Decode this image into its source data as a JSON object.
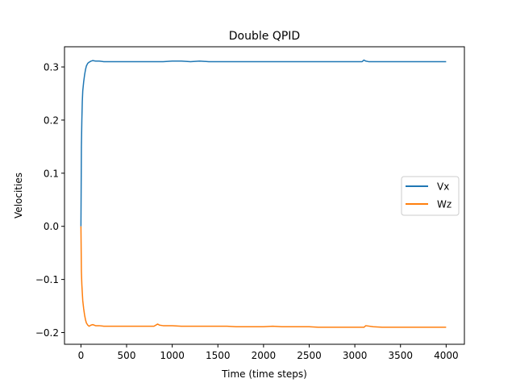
{
  "chart_data": {
    "type": "line",
    "title": "Double QPID",
    "xlabel": "Time (time steps)",
    "ylabel": "Velocities",
    "xlim": [
      -180,
      4200
    ],
    "ylim": [
      -0.222,
      0.338
    ],
    "xticks": [
      0,
      500,
      1000,
      1500,
      2000,
      2500,
      3000,
      3500,
      4000
    ],
    "yticks": [
      -0.2,
      -0.1,
      0.0,
      0.1,
      0.2,
      0.3
    ],
    "ytick_labels": [
      "−0.2",
      "−0.1",
      "0.0",
      "0.1",
      "0.2",
      "0.3"
    ],
    "grid": false,
    "legend": {
      "placement": "center-right"
    },
    "series": [
      {
        "name": "Vx",
        "color": "#1f77b4",
        "x": [
          0,
          5,
          10,
          15,
          20,
          30,
          40,
          50,
          60,
          75,
          90,
          110,
          130,
          160,
          200,
          250,
          300,
          400,
          500,
          600,
          700,
          800,
          900,
          1000,
          1100,
          1200,
          1300,
          1400,
          1500,
          1600,
          1700,
          1800,
          1900,
          2000,
          2100,
          2200,
          2300,
          2400,
          2500,
          2600,
          2700,
          2800,
          2900,
          3000,
          3080,
          3100,
          3120,
          3150,
          3200,
          3300,
          3400,
          3500,
          3600,
          3700,
          3800,
          3900,
          4000
        ],
        "y": [
          0.0,
          0.15,
          0.2,
          0.235,
          0.255,
          0.272,
          0.285,
          0.295,
          0.302,
          0.307,
          0.309,
          0.311,
          0.312,
          0.311,
          0.311,
          0.31,
          0.31,
          0.31,
          0.31,
          0.31,
          0.31,
          0.31,
          0.31,
          0.311,
          0.311,
          0.31,
          0.311,
          0.31,
          0.31,
          0.31,
          0.31,
          0.31,
          0.31,
          0.31,
          0.31,
          0.31,
          0.31,
          0.31,
          0.31,
          0.31,
          0.31,
          0.31,
          0.31,
          0.31,
          0.31,
          0.313,
          0.311,
          0.31,
          0.31,
          0.31,
          0.31,
          0.31,
          0.31,
          0.31,
          0.31,
          0.31,
          0.31
        ]
      },
      {
        "name": "Wz",
        "color": "#ff7f0e",
        "x": [
          0,
          5,
          10,
          15,
          20,
          30,
          40,
          50,
          60,
          75,
          90,
          110,
          130,
          160,
          200,
          250,
          300,
          400,
          500,
          600,
          700,
          800,
          840,
          860,
          900,
          1000,
          1100,
          1200,
          1300,
          1400,
          1500,
          1600,
          1700,
          1800,
          1900,
          2000,
          2100,
          2200,
          2300,
          2400,
          2500,
          2600,
          2700,
          2800,
          2900,
          3000,
          3100,
          3120,
          3200,
          3300,
          3400,
          3500,
          3600,
          3700,
          3800,
          3900,
          4000
        ],
        "y": [
          0.0,
          -0.085,
          -0.11,
          -0.125,
          -0.14,
          -0.155,
          -0.167,
          -0.176,
          -0.182,
          -0.186,
          -0.188,
          -0.186,
          -0.185,
          -0.187,
          -0.187,
          -0.188,
          -0.188,
          -0.188,
          -0.188,
          -0.188,
          -0.188,
          -0.188,
          -0.184,
          -0.186,
          -0.187,
          -0.187,
          -0.188,
          -0.188,
          -0.188,
          -0.188,
          -0.188,
          -0.188,
          -0.189,
          -0.189,
          -0.189,
          -0.189,
          -0.188,
          -0.189,
          -0.189,
          -0.189,
          -0.189,
          -0.19,
          -0.19,
          -0.19,
          -0.19,
          -0.19,
          -0.19,
          -0.187,
          -0.189,
          -0.19,
          -0.19,
          -0.19,
          -0.19,
          -0.19,
          -0.19,
          -0.19,
          -0.19
        ]
      }
    ]
  }
}
